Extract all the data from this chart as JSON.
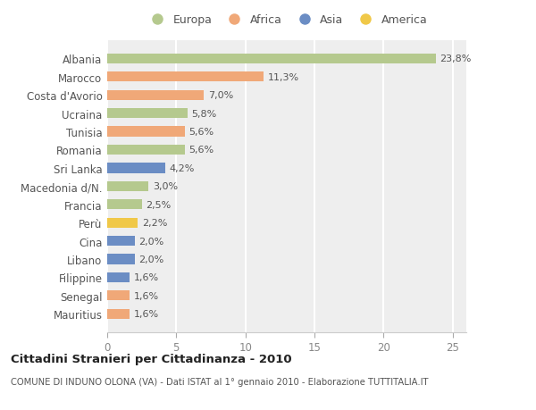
{
  "categories": [
    "Albania",
    "Marocco",
    "Costa d'Avorio",
    "Ucraina",
    "Tunisia",
    "Romania",
    "Sri Lanka",
    "Macedonia d/N.",
    "Francia",
    "Perù",
    "Cina",
    "Libano",
    "Filippine",
    "Senegal",
    "Mauritius"
  ],
  "values": [
    23.8,
    11.3,
    7.0,
    5.8,
    5.6,
    5.6,
    4.2,
    3.0,
    2.5,
    2.2,
    2.0,
    2.0,
    1.6,
    1.6,
    1.6
  ],
  "labels": [
    "23,8%",
    "11,3%",
    "7,0%",
    "5,8%",
    "5,6%",
    "5,6%",
    "4,2%",
    "3,0%",
    "2,5%",
    "2,2%",
    "2,0%",
    "2,0%",
    "1,6%",
    "1,6%",
    "1,6%"
  ],
  "continents": [
    "Europa",
    "Africa",
    "Africa",
    "Europa",
    "Africa",
    "Europa",
    "Asia",
    "Europa",
    "Europa",
    "America",
    "Asia",
    "Asia",
    "Asia",
    "Africa",
    "Africa"
  ],
  "colors": {
    "Europa": "#b5c98e",
    "Africa": "#f0a878",
    "Asia": "#6b8dc4",
    "America": "#f0c848"
  },
  "legend_order": [
    "Europa",
    "Africa",
    "Asia",
    "America"
  ],
  "title": "Cittadini Stranieri per Cittadinanza - 2010",
  "subtitle": "COMUNE DI INDUNO OLONA (VA) - Dati ISTAT al 1° gennaio 2010 - Elaborazione TUTTITALIA.IT",
  "xlim": [
    0,
    26
  ],
  "xticks": [
    0,
    5,
    10,
    15,
    20,
    25
  ],
  "bg_color": "#ffffff",
  "plot_bg_color": "#eeeeee",
  "grid_color": "#ffffff",
  "bar_height": 0.55
}
